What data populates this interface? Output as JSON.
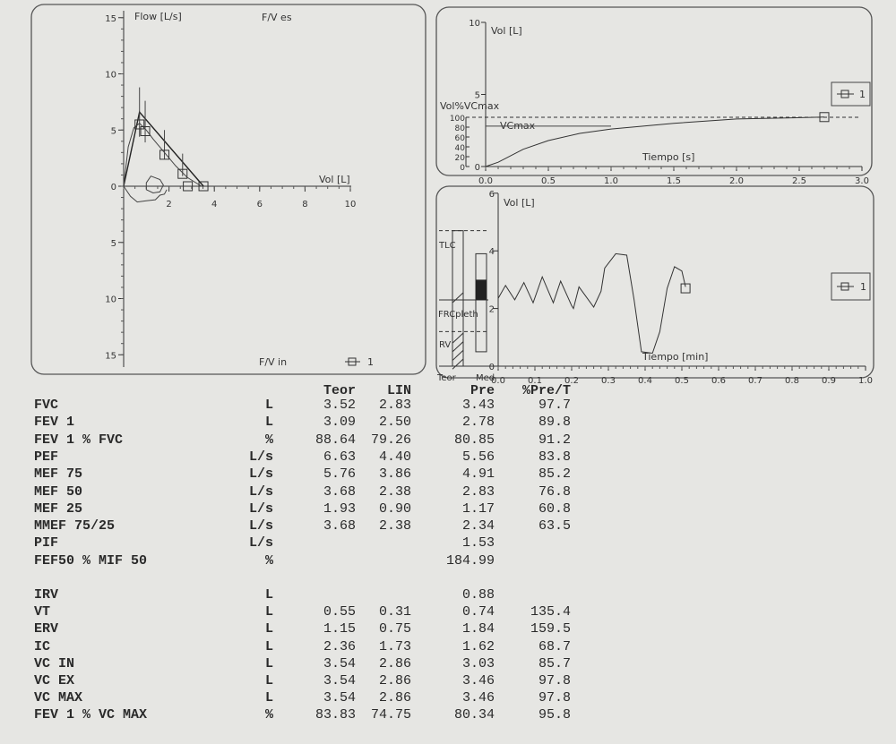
{
  "flow_volume": {
    "y_label": "Flow [L/s]",
    "x_label": "Vol [L]",
    "top_label": "F/V es",
    "bottom_label": "F/V in",
    "legend": "1",
    "y_ticks": [
      "15",
      "10",
      "5",
      "0",
      "5",
      "10",
      "15"
    ],
    "x_ticks": [
      "2",
      "4",
      "6",
      "8",
      "10"
    ]
  },
  "volume_time": {
    "y_label": "Vol [L]",
    "y2_label": "Vol%VCmax",
    "vcmax_label": "VCmax",
    "x_label": "Tiempo [s]",
    "legend": "1",
    "y_ticks": [
      "10",
      "5",
      "0"
    ],
    "y2_ticks": [
      "100",
      "80",
      "60",
      "40",
      "20",
      "0"
    ],
    "x_ticks": [
      "0.0",
      "0.5",
      "1.0",
      "1.5",
      "2.0",
      "2.5",
      "3.0"
    ]
  },
  "spirogram": {
    "y_label": "Vol [L]",
    "x_label": "Tiempo [min]",
    "legend": "1",
    "y_ticks": [
      "6",
      "4",
      "2",
      "0"
    ],
    "x_ticks": [
      "0.0",
      "0.1",
      "0.2",
      "0.3",
      "0.4",
      "0.5",
      "0.6",
      "0.7",
      "0.8",
      "0.9",
      "1.0"
    ],
    "bar_labels": {
      "tlc": "TLC",
      "frc": "FRCpleth",
      "rv": "RV",
      "teor": "Teor",
      "med": "Med"
    }
  },
  "chart_data": [
    {
      "type": "line",
      "title": "F/V es",
      "xlabel": "Vol [L]",
      "ylabel": "Flow [L/s]",
      "xlim": [
        0,
        10
      ],
      "ylim": [
        -15,
        15
      ],
      "measured_expiratory": [
        [
          0,
          0
        ],
        [
          0.2,
          3.5
        ],
        [
          0.45,
          5.2
        ],
        [
          0.7,
          5.6
        ],
        [
          1.0,
          5.0
        ],
        [
          1.3,
          4.2
        ],
        [
          1.8,
          3.0
        ],
        [
          2.3,
          1.8
        ],
        [
          2.8,
          0.8
        ],
        [
          3.43,
          0
        ]
      ],
      "measured_inspiratory": [
        [
          0,
          0
        ],
        [
          0.3,
          -0.9
        ],
        [
          0.6,
          -1.4
        ],
        [
          1.0,
          -1.3
        ],
        [
          1.4,
          -1.2
        ],
        [
          1.6,
          -0.8
        ],
        [
          1.8,
          -0.7
        ],
        [
          1.9,
          -0.3
        ]
      ],
      "inspiratory_loop": [
        [
          1.0,
          0.3
        ],
        [
          1.2,
          0.9
        ],
        [
          1.6,
          0.6
        ],
        [
          1.75,
          0.1
        ],
        [
          1.6,
          -0.5
        ],
        [
          1.3,
          -0.6
        ],
        [
          1.0,
          -0.3
        ],
        [
          1.0,
          0.3
        ]
      ],
      "predicted_line": [
        [
          0,
          0
        ],
        [
          0.7,
          6.6
        ],
        [
          3.52,
          0
        ]
      ],
      "predicted_markers": [
        {
          "x": 0.7,
          "y": 5.5,
          "lo": 4.4,
          "hi": 8.8
        },
        {
          "x": 0.95,
          "y": 4.9,
          "lo": 3.9,
          "hi": 7.6
        },
        {
          "x": 1.8,
          "y": 2.8,
          "lo": 2.4,
          "hi": 5.0
        },
        {
          "x": 2.6,
          "y": 1.1,
          "lo": 0.9,
          "hi": 2.9
        },
        {
          "x": 2.83,
          "y": 0,
          "lo": 0,
          "hi": 0
        },
        {
          "x": 3.52,
          "y": 0,
          "lo": 0,
          "hi": 0
        }
      ]
    },
    {
      "type": "line",
      "xlabel": "Tiempo [s]",
      "ylabel": "Vol [L]",
      "xlim": [
        0,
        3
      ],
      "ylim": [
        0,
        10
      ],
      "series": [
        {
          "values": [
            [
              0,
              0
            ],
            [
              0.1,
              0.3
            ],
            [
              0.3,
              1.2
            ],
            [
              0.5,
              1.8
            ],
            [
              0.75,
              2.3
            ],
            [
              1.0,
              2.6
            ],
            [
              1.5,
              3.0
            ],
            [
              2.0,
              3.3
            ],
            [
              2.7,
              3.43
            ]
          ]
        }
      ],
      "vcmax_line": 2.8,
      "marker": [
        2.7,
        3.43
      ]
    },
    {
      "type": "line",
      "xlabel": "Tiempo [min]",
      "ylabel": "Vol [L]",
      "xlim": [
        0,
        1
      ],
      "ylim": [
        0,
        6
      ],
      "series": [
        {
          "values": [
            [
              0,
              2.35
            ],
            [
              0.02,
              2.8
            ],
            [
              0.045,
              2.3
            ],
            [
              0.07,
              2.9
            ],
            [
              0.095,
              2.2
            ],
            [
              0.12,
              3.1
            ],
            [
              0.15,
              2.2
            ],
            [
              0.17,
              2.95
            ],
            [
              0.2,
              2.1
            ],
            [
              0.205,
              2.0
            ],
            [
              0.22,
              2.75
            ],
            [
              0.26,
              2.05
            ],
            [
              0.28,
              2.6
            ],
            [
              0.29,
              3.4
            ],
            [
              0.32,
              3.9
            ],
            [
              0.35,
              3.85
            ],
            [
              0.37,
              2.3
            ],
            [
              0.39,
              0.5
            ],
            [
              0.42,
              0.45
            ],
            [
              0.44,
              1.2
            ],
            [
              0.46,
              2.7
            ],
            [
              0.48,
              3.45
            ],
            [
              0.5,
              3.3
            ],
            [
              0.51,
              2.75
            ]
          ]
        }
      ],
      "marker": [
        0.51,
        2.7
      ],
      "teor_bar": {
        "tlc": 4.7,
        "frc": 2.3,
        "frc_top": 2.8,
        "rv": 1.2
      },
      "med_bar": {
        "top": 3.9,
        "bottom": 0.5,
        "fill_top": 3.0,
        "fill_bottom": 2.3
      }
    }
  ],
  "table": {
    "headers": {
      "teor": "Teor",
      "lin": "LIN",
      "pre": "Pre",
      "pct": "%Pre/T"
    },
    "group1": [
      {
        "name": "FVC",
        "unit": "L",
        "teor": "3.52",
        "lin": "2.83",
        "pre": "3.43",
        "pct": "97.7"
      },
      {
        "name": "FEV 1",
        "unit": "L",
        "teor": "3.09",
        "lin": "2.50",
        "pre": "2.78",
        "pct": "89.8"
      },
      {
        "name": "FEV 1 % FVC",
        "unit": "%",
        "teor": "88.64",
        "lin": "79.26",
        "pre": "80.85",
        "pct": "91.2"
      },
      {
        "name": "PEF",
        "unit": "L/s",
        "teor": "6.63",
        "lin": "4.40",
        "pre": "5.56",
        "pct": "83.8"
      },
      {
        "name": "MEF 75",
        "unit": "L/s",
        "teor": "5.76",
        "lin": "3.86",
        "pre": "4.91",
        "pct": "85.2"
      },
      {
        "name": "MEF 50",
        "unit": "L/s",
        "teor": "3.68",
        "lin": "2.38",
        "pre": "2.83",
        "pct": "76.8"
      },
      {
        "name": "MEF 25",
        "unit": "L/s",
        "teor": "1.93",
        "lin": "0.90",
        "pre": "1.17",
        "pct": "60.8"
      },
      {
        "name": "MMEF 75/25",
        "unit": "L/s",
        "teor": "3.68",
        "lin": "2.38",
        "pre": "2.34",
        "pct": "63.5"
      },
      {
        "name": "PIF",
        "unit": "L/s",
        "teor": "",
        "lin": "",
        "pre": "1.53",
        "pct": ""
      },
      {
        "name": "FEF50 % MIF 50",
        "unit": "%",
        "teor": "",
        "lin": "",
        "pre": "184.99",
        "pct": ""
      }
    ],
    "group2": [
      {
        "name": "IRV",
        "unit": "L",
        "teor": "",
        "lin": "",
        "pre": "0.88",
        "pct": ""
      },
      {
        "name": "VT",
        "unit": "L",
        "teor": "0.55",
        "lin": "0.31",
        "pre": "0.74",
        "pct": "135.4"
      },
      {
        "name": "ERV",
        "unit": "L",
        "teor": "1.15",
        "lin": "0.75",
        "pre": "1.84",
        "pct": "159.5"
      },
      {
        "name": "IC",
        "unit": "L",
        "teor": "2.36",
        "lin": "1.73",
        "pre": "1.62",
        "pct": "68.7"
      },
      {
        "name": "VC IN",
        "unit": "L",
        "teor": "3.54",
        "lin": "2.86",
        "pre": "3.03",
        "pct": "85.7"
      },
      {
        "name": "VC EX",
        "unit": "L",
        "teor": "3.54",
        "lin": "2.86",
        "pre": "3.46",
        "pct": "97.8"
      },
      {
        "name": "VC MAX",
        "unit": "L",
        "teor": "3.54",
        "lin": "2.86",
        "pre": "3.46",
        "pct": "97.8"
      },
      {
        "name": "FEV 1 % VC MAX",
        "unit": "%",
        "teor": "83.83",
        "lin": "74.75",
        "pre": "80.34",
        "pct": "95.8"
      }
    ]
  }
}
